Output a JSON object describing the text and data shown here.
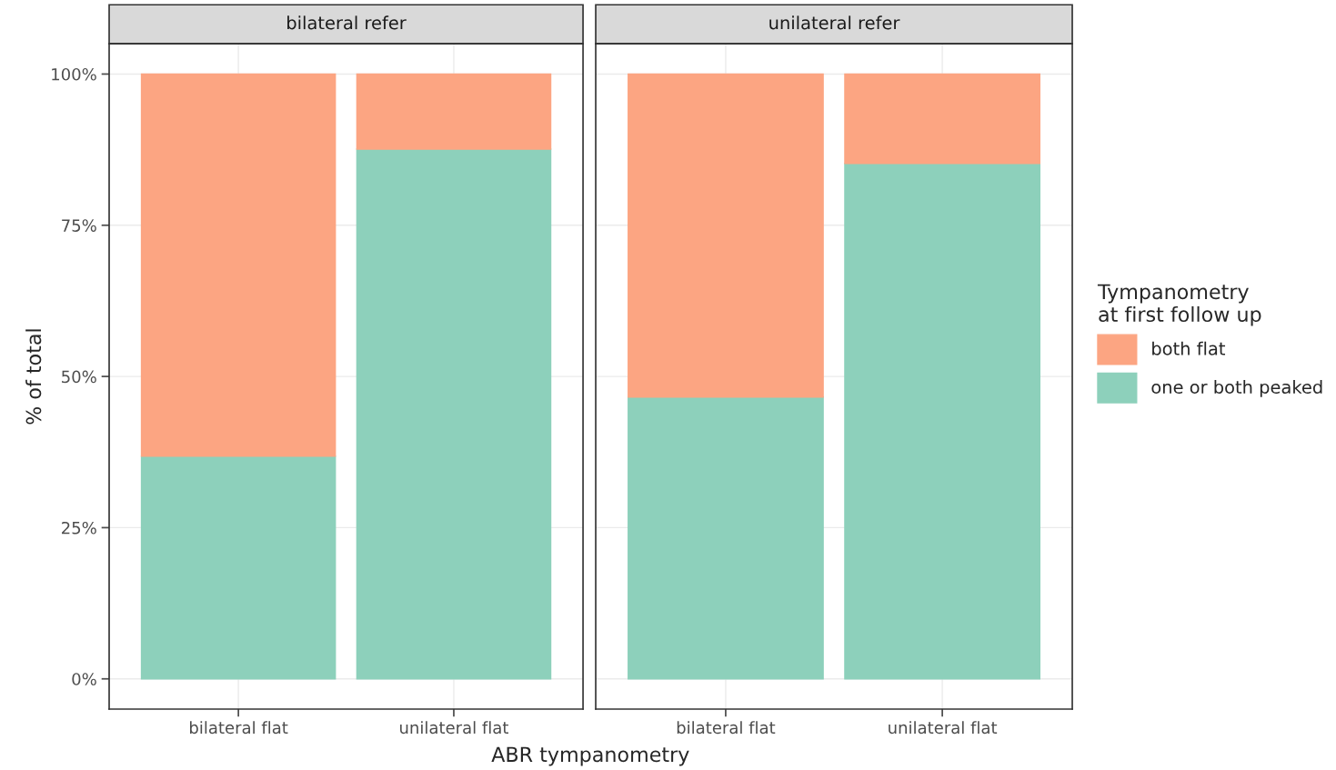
{
  "chart_data": [
    {
      "type": "bar",
      "title": "bilateral refer",
      "ylabel": "% of total",
      "xlabel": "ABR tympanometry",
      "categories": [
        "bilateral flat",
        "unilateral flat"
      ],
      "stacked": true,
      "series": [
        {
          "color": "#8dd0bb",
          "values": [
            36.8,
            87.6
          ]
        },
        {
          "color": "#fca582",
          "values": [
            63.2,
            12.4
          ]
        }
      ],
      "ylim": [
        -5,
        105
      ],
      "yticks": [
        {
          "value": 0,
          "label": "0%"
        },
        {
          "value": 25,
          "label": "25%"
        },
        {
          "value": 50,
          "label": "50%"
        },
        {
          "value": 75,
          "label": "75%"
        },
        {
          "value": 100,
          "label": "100%"
        }
      ],
      "grid": true
    },
    {
      "type": "bar",
      "title": "unilateral refer",
      "legend_title": "Tympanometry\nat first follow up",
      "categories": [
        "bilateral flat",
        "unilateral flat"
      ],
      "stacked": true,
      "series": [
        {
          "name": "one or both peaked",
          "color": "#8dd0bb",
          "values": [
            46.6,
            85.2
          ]
        },
        {
          "name": "both flat",
          "color": "#fca582",
          "values": [
            53.4,
            14.8
          ]
        }
      ],
      "ylim": [
        -5,
        105
      ],
      "yticks": [
        0,
        25,
        50,
        75,
        100
      ],
      "grid": true,
      "tick_labels": "x",
      "legend": "right"
    }
  ]
}
